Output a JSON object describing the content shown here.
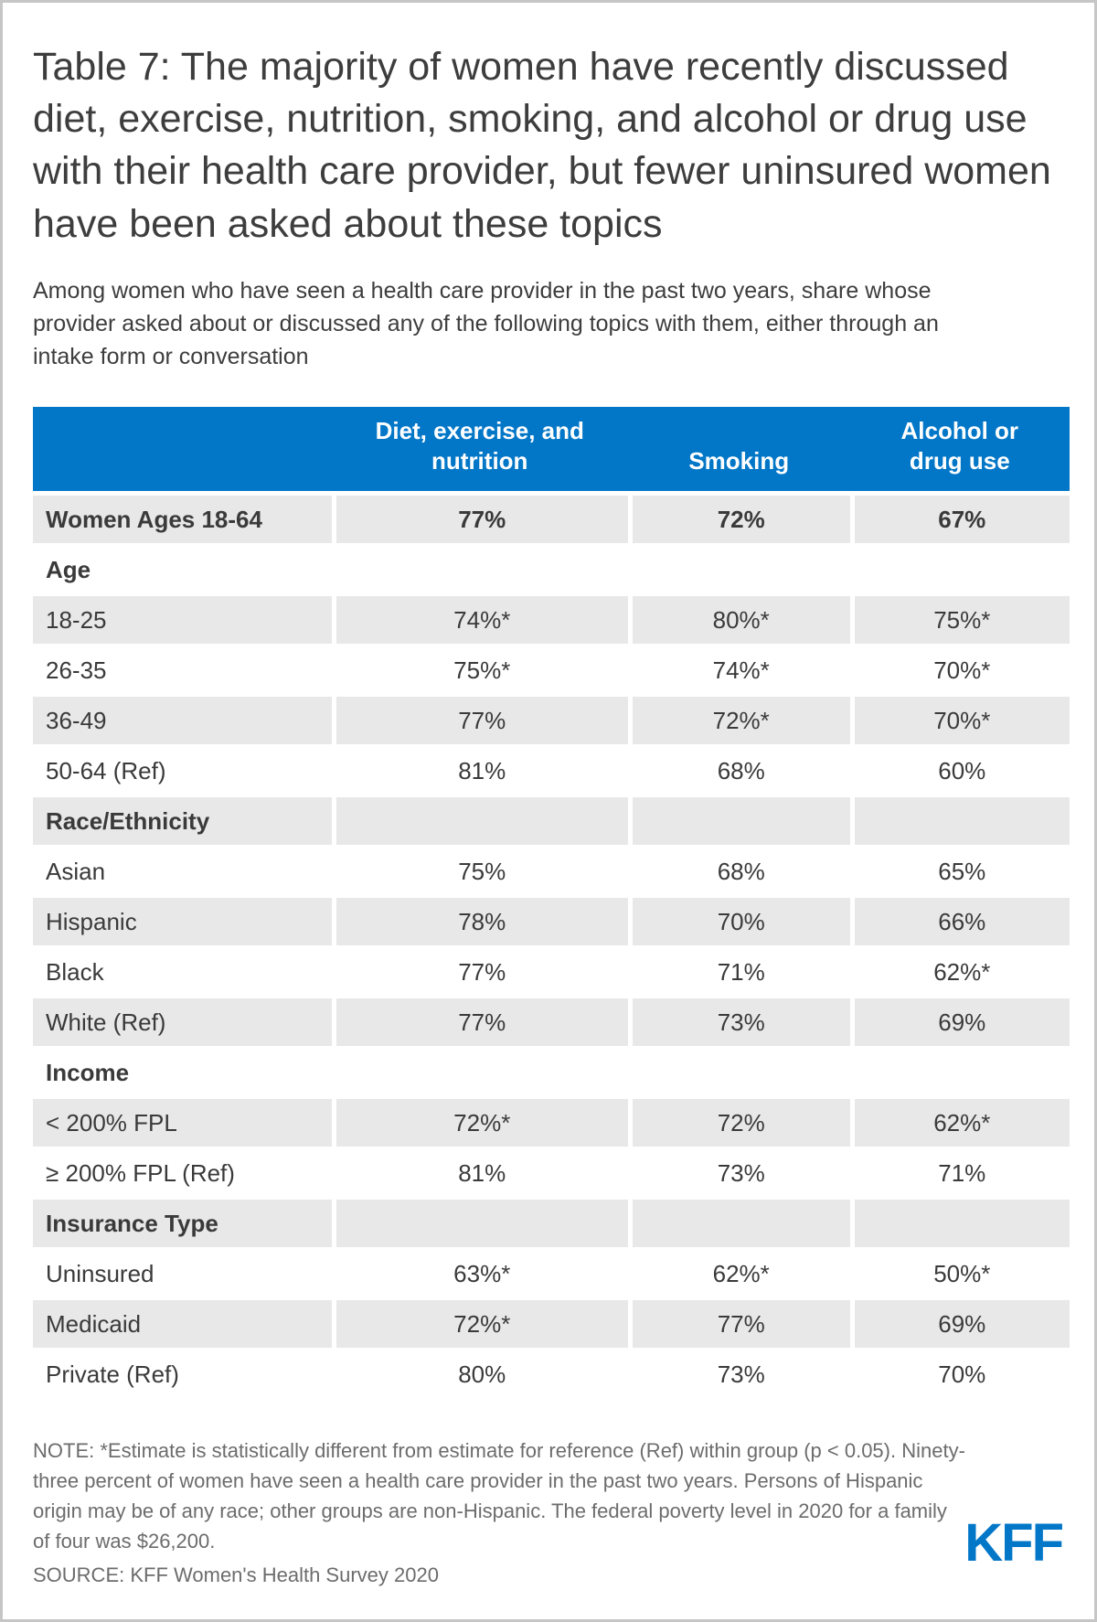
{
  "title": "Table 7: The majority of women have recently discussed diet, exercise, nutrition, smoking, and alcohol or drug use with their health care provider, but fewer uninsured women have been asked about these topics",
  "subtitle": "Among women who have seen a health care provider in the past two years, share whose provider asked about or discussed any of the following topics with them, either through an intake form or conversation",
  "note": "NOTE: *Estimate is statistically different from estimate for reference (Ref) within group (p < 0.05). Ninety-three percent of women have seen a health care provider in the past two years. Persons of Hispanic origin may be of any race; other groups are non-Hispanic. The federal poverty level in 2020 for a family of four was $26,200.",
  "source": "SOURCE: KFF Women's Health Survey 2020",
  "logo_text": "KFF",
  "colors": {
    "header_blue": "#0277C8",
    "row_gray": "#E8E8E8",
    "logo_blue": "#0277C8",
    "title_text": "#3d3d3d",
    "note_text": "#6c6c6c"
  },
  "chart_data": {
    "type": "table",
    "title": "Table 7: The majority of women have recently discussed diet, exercise, nutrition, smoking, and alcohol or drug use with their health care provider, but fewer uninsured women have been asked about these topics",
    "subtitle": "Among women who have seen a health care provider in the past two years, share whose provider asked about or discussed any of the following topics with them, either through an intake form or conversation",
    "columns": [
      "Diet, exercise, and nutrition",
      "Smoking",
      "Alcohol or drug use"
    ],
    "rows": [
      {
        "label": "Women Ages 18-64",
        "values": [
          "77%",
          "72%",
          "67%"
        ],
        "shade": true,
        "bold": true,
        "section": false
      },
      {
        "label": "Age",
        "values": [
          "",
          "",
          ""
        ],
        "shade": false,
        "bold": false,
        "section": true
      },
      {
        "label": "18-25",
        "values": [
          "74%*",
          "80%*",
          "75%*"
        ],
        "shade": true,
        "bold": false,
        "section": false
      },
      {
        "label": "26-35",
        "values": [
          "75%*",
          "74%*",
          "70%*"
        ],
        "shade": false,
        "bold": false,
        "section": false
      },
      {
        "label": "36-49",
        "values": [
          "77%",
          "72%*",
          "70%*"
        ],
        "shade": true,
        "bold": false,
        "section": false
      },
      {
        "label": "50-64 (Ref)",
        "values": [
          "81%",
          "68%",
          "60%"
        ],
        "shade": false,
        "bold": false,
        "section": false
      },
      {
        "label": "Race/Ethnicity",
        "values": [
          "",
          "",
          ""
        ],
        "shade": true,
        "bold": false,
        "section": true
      },
      {
        "label": "Asian",
        "values": [
          "75%",
          "68%",
          "65%"
        ],
        "shade": false,
        "bold": false,
        "section": false
      },
      {
        "label": "Hispanic",
        "values": [
          "78%",
          "70%",
          "66%"
        ],
        "shade": true,
        "bold": false,
        "section": false
      },
      {
        "label": "Black",
        "values": [
          "77%",
          "71%",
          "62%*"
        ],
        "shade": false,
        "bold": false,
        "section": false
      },
      {
        "label": "White (Ref)",
        "values": [
          "77%",
          "73%",
          "69%"
        ],
        "shade": true,
        "bold": false,
        "section": false
      },
      {
        "label": "Income",
        "values": [
          "",
          "",
          ""
        ],
        "shade": false,
        "bold": false,
        "section": true
      },
      {
        "label": "< 200% FPL",
        "values": [
          "72%*",
          "72%",
          "62%*"
        ],
        "shade": true,
        "bold": false,
        "section": false
      },
      {
        "label": "≥ 200% FPL (Ref)",
        "values": [
          "81%",
          "73%",
          "71%"
        ],
        "shade": false,
        "bold": false,
        "section": false
      },
      {
        "label": "Insurance Type",
        "values": [
          "",
          "",
          ""
        ],
        "shade": true,
        "bold": false,
        "section": true
      },
      {
        "label": "Uninsured",
        "values": [
          "63%*",
          "62%*",
          "50%*"
        ],
        "shade": false,
        "bold": false,
        "section": false
      },
      {
        "label": "Medicaid",
        "values": [
          "72%*",
          "77%",
          "69%"
        ],
        "shade": true,
        "bold": false,
        "section": false
      },
      {
        "label": "Private (Ref)",
        "values": [
          "80%",
          "73%",
          "70%"
        ],
        "shade": false,
        "bold": false,
        "section": false
      }
    ],
    "note": "NOTE: *Estimate is statistically different from estimate for reference (Ref) within group (p < 0.05). Ninety-three percent of women have seen a health care provider in the past two years. Persons of Hispanic origin may be of any race; other groups are non-Hispanic. The federal poverty level in 2020 for a family of four was $26,200.",
    "source": "SOURCE: KFF Women's Health Survey 2020"
  }
}
